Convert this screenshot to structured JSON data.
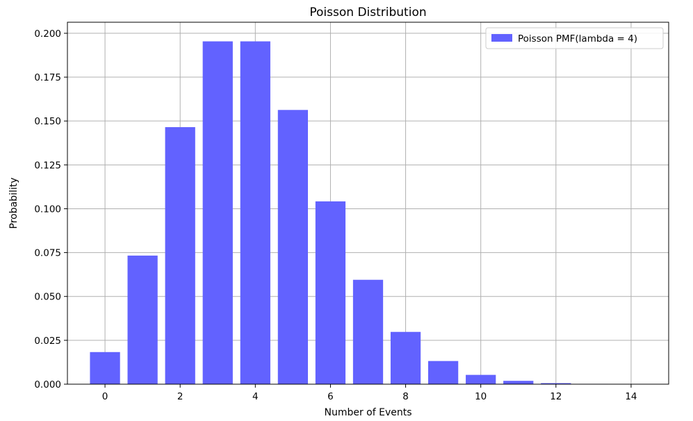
{
  "chart_data": {
    "type": "bar",
    "title": "Poisson Distribution",
    "xlabel": "Number of Events",
    "ylabel": "Probability",
    "x": [
      0,
      1,
      2,
      3,
      4,
      5,
      6,
      7,
      8,
      9,
      10,
      11,
      12,
      13,
      14
    ],
    "series": [
      {
        "name": "Poisson PMF(lambda = 4)",
        "color": "#6262ff",
        "values": [
          0.0183,
          0.0733,
          0.1465,
          0.1954,
          0.1954,
          0.1563,
          0.1042,
          0.0595,
          0.0298,
          0.0132,
          0.0053,
          0.0019,
          0.0006,
          0.0002,
          0.0001
        ]
      }
    ],
    "xlim": [
      -1,
      15
    ],
    "ylim": [
      0,
      0.2063
    ],
    "xticks": [
      0,
      2,
      4,
      6,
      8,
      10,
      12,
      14
    ],
    "xtick_labels": [
      "0",
      "2",
      "4",
      "6",
      "8",
      "10",
      "12",
      "14"
    ],
    "yticks": [
      0,
      0.025,
      0.05,
      0.075,
      0.1,
      0.125,
      0.15,
      0.175,
      0.2
    ],
    "ytick_labels": [
      "0.000",
      "0.025",
      "0.050",
      "0.075",
      "0.100",
      "0.125",
      "0.150",
      "0.175",
      "0.200"
    ],
    "grid": true,
    "legend_position": "top-right"
  }
}
